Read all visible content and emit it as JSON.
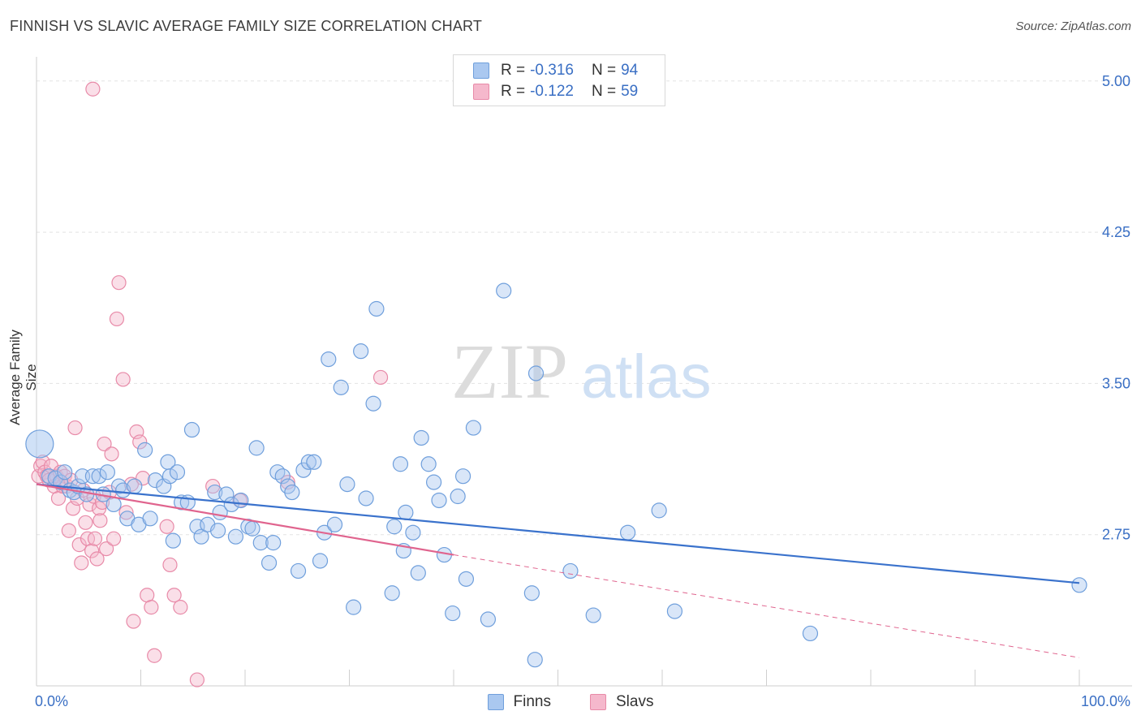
{
  "header": {
    "title": "FINNISH VS SLAVIC AVERAGE FAMILY SIZE CORRELATION CHART",
    "source": "Source: ZipAtlas.com"
  },
  "legend_top": {
    "rows": [
      {
        "r_label": "R =",
        "r_value": "-0.316",
        "n_label": "N =",
        "n_value": "94"
      },
      {
        "r_label": "R =",
        "r_value": "-0.122",
        "n_label": "N =",
        "n_value": "59"
      }
    ]
  },
  "legend_bottom": {
    "items": [
      "Finns",
      "Slavs"
    ]
  },
  "colors": {
    "finns_fill": "#aac8f0",
    "finns_stroke": "#6f9fdc",
    "finns_line": "#3a72cc",
    "slavs_fill": "#f5b8cc",
    "slavs_stroke": "#e88aa8",
    "slavs_line": "#e0648e",
    "tick_label": "#3a6fc4"
  },
  "chart_data": {
    "type": "scatter",
    "title": "FINNISH VS SLAVIC AVERAGE FAMILY SIZE CORRELATION CHART",
    "ylabel": "Average Family Size",
    "xlabel": "",
    "xlim": [
      0,
      100
    ],
    "ylim": [
      2.0,
      5.12
    ],
    "x_tick_labels": [
      "0.0%",
      "100.0%"
    ],
    "y_ticks": [
      2.75,
      3.5,
      4.25,
      5.0
    ],
    "y_tick_labels": [
      "2.75",
      "3.50",
      "4.25",
      "5.00"
    ],
    "grid": true,
    "legend_position": "top-center",
    "watermark": "ZIPatlas",
    "series": [
      {
        "name": "Finns",
        "r": -0.316,
        "n": 94,
        "trend": {
          "x0": 0,
          "y0": 3.0,
          "x1": 100,
          "y1": 2.51
        },
        "points": [
          [
            0.3,
            3.2
          ],
          [
            1.2,
            3.04
          ],
          [
            1.8,
            3.03
          ],
          [
            2.3,
            3.01
          ],
          [
            2.7,
            3.06
          ],
          [
            3.2,
            2.97
          ],
          [
            3.6,
            2.96
          ],
          [
            4.0,
            2.99
          ],
          [
            4.4,
            3.04
          ],
          [
            4.8,
            2.95
          ],
          [
            5.4,
            3.04
          ],
          [
            6.0,
            3.04
          ],
          [
            6.4,
            2.95
          ],
          [
            6.8,
            3.06
          ],
          [
            7.4,
            2.9
          ],
          [
            7.9,
            2.99
          ],
          [
            8.3,
            2.97
          ],
          [
            8.7,
            2.83
          ],
          [
            9.4,
            2.99
          ],
          [
            9.8,
            2.8
          ],
          [
            10.4,
            3.17
          ],
          [
            10.9,
            2.83
          ],
          [
            11.4,
            3.02
          ],
          [
            12.2,
            2.99
          ],
          [
            12.6,
            3.11
          ],
          [
            12.8,
            3.04
          ],
          [
            13.1,
            2.72
          ],
          [
            13.5,
            3.06
          ],
          [
            13.9,
            2.91
          ],
          [
            14.5,
            2.91
          ],
          [
            14.9,
            3.27
          ],
          [
            15.4,
            2.79
          ],
          [
            15.8,
            2.74
          ],
          [
            16.4,
            2.8
          ],
          [
            17.1,
            2.96
          ],
          [
            17.4,
            2.77
          ],
          [
            17.6,
            2.86
          ],
          [
            18.2,
            2.95
          ],
          [
            18.7,
            2.9
          ],
          [
            19.1,
            2.74
          ],
          [
            19.6,
            2.92
          ],
          [
            20.3,
            2.79
          ],
          [
            20.7,
            2.78
          ],
          [
            21.1,
            3.18
          ],
          [
            21.5,
            2.71
          ],
          [
            22.3,
            2.61
          ],
          [
            22.7,
            2.71
          ],
          [
            23.1,
            3.06
          ],
          [
            23.6,
            3.04
          ],
          [
            24.1,
            2.99
          ],
          [
            24.5,
            2.96
          ],
          [
            25.1,
            2.57
          ],
          [
            25.6,
            3.07
          ],
          [
            26.1,
            3.11
          ],
          [
            26.6,
            3.11
          ],
          [
            27.2,
            2.62
          ],
          [
            27.6,
            2.76
          ],
          [
            28.0,
            3.62
          ],
          [
            28.6,
            2.8
          ],
          [
            29.2,
            3.48
          ],
          [
            29.8,
            3.0
          ],
          [
            30.4,
            2.39
          ],
          [
            31.1,
            3.66
          ],
          [
            31.6,
            2.93
          ],
          [
            32.3,
            3.4
          ],
          [
            32.6,
            3.87
          ],
          [
            34.1,
            2.46
          ],
          [
            34.3,
            2.79
          ],
          [
            34.9,
            3.1
          ],
          [
            35.2,
            2.67
          ],
          [
            35.4,
            2.86
          ],
          [
            36.1,
            2.76
          ],
          [
            36.6,
            2.56
          ],
          [
            36.9,
            3.23
          ],
          [
            37.6,
            3.1
          ],
          [
            38.1,
            3.01
          ],
          [
            38.6,
            2.92
          ],
          [
            39.1,
            2.65
          ],
          [
            39.9,
            2.36
          ],
          [
            40.4,
            2.94
          ],
          [
            40.9,
            3.04
          ],
          [
            41.2,
            2.53
          ],
          [
            41.9,
            3.28
          ],
          [
            43.3,
            2.33
          ],
          [
            44.8,
            3.96
          ],
          [
            47.5,
            2.46
          ],
          [
            47.8,
            2.13
          ],
          [
            47.9,
            3.55
          ],
          [
            51.2,
            2.57
          ],
          [
            53.4,
            2.35
          ],
          [
            56.7,
            2.76
          ],
          [
            59.7,
            2.87
          ],
          [
            61.2,
            2.37
          ],
          [
            74.2,
            2.26
          ],
          [
            100.0,
            2.5
          ]
        ]
      },
      {
        "name": "Slavs",
        "r": -0.122,
        "n": 59,
        "trend": {
          "x0": 0,
          "y0": 3.0,
          "x1": 40,
          "y1": 2.65
        },
        "dashed_extension": {
          "x0": 40,
          "y0": 2.65,
          "x1": 100,
          "y1": 2.14
        },
        "points": [
          [
            0.2,
            3.04
          ],
          [
            0.4,
            3.09
          ],
          [
            0.6,
            3.11
          ],
          [
            0.8,
            3.06
          ],
          [
            1.0,
            3.04
          ],
          [
            1.2,
            3.02
          ],
          [
            1.4,
            3.09
          ],
          [
            1.7,
            2.99
          ],
          [
            1.9,
            3.04
          ],
          [
            2.1,
            2.93
          ],
          [
            2.3,
            3.06
          ],
          [
            2.5,
            2.99
          ],
          [
            2.7,
            3.04
          ],
          [
            2.9,
            2.99
          ],
          [
            3.1,
            2.77
          ],
          [
            3.3,
            3.02
          ],
          [
            3.5,
            2.88
          ],
          [
            3.7,
            3.28
          ],
          [
            3.9,
            2.93
          ],
          [
            4.1,
            2.7
          ],
          [
            4.3,
            2.61
          ],
          [
            4.5,
            2.97
          ],
          [
            4.7,
            2.81
          ],
          [
            4.9,
            2.73
          ],
          [
            5.1,
            2.9
          ],
          [
            5.3,
            2.67
          ],
          [
            5.5,
            2.94
          ],
          [
            5.6,
            2.73
          ],
          [
            5.8,
            2.63
          ],
          [
            6.0,
            2.88
          ],
          [
            6.1,
            2.82
          ],
          [
            6.3,
            2.91
          ],
          [
            6.5,
            3.2
          ],
          [
            6.7,
            2.68
          ],
          [
            7.0,
            2.96
          ],
          [
            7.2,
            3.15
          ],
          [
            7.4,
            2.73
          ],
          [
            7.7,
            3.82
          ],
          [
            7.9,
            4.0
          ],
          [
            8.3,
            3.52
          ],
          [
            8.6,
            2.86
          ],
          [
            9.1,
            3.0
          ],
          [
            9.3,
            2.32
          ],
          [
            9.6,
            3.26
          ],
          [
            9.9,
            3.21
          ],
          [
            10.2,
            3.03
          ],
          [
            10.6,
            2.45
          ],
          [
            11.0,
            2.39
          ],
          [
            11.3,
            2.15
          ],
          [
            12.5,
            2.79
          ],
          [
            12.8,
            2.6
          ],
          [
            13.2,
            2.45
          ],
          [
            13.8,
            2.39
          ],
          [
            15.4,
            2.03
          ],
          [
            16.9,
            2.99
          ],
          [
            19.5,
            2.92
          ],
          [
            24.1,
            3.01
          ],
          [
            33.0,
            3.53
          ],
          [
            5.4,
            4.96
          ]
        ]
      }
    ]
  }
}
